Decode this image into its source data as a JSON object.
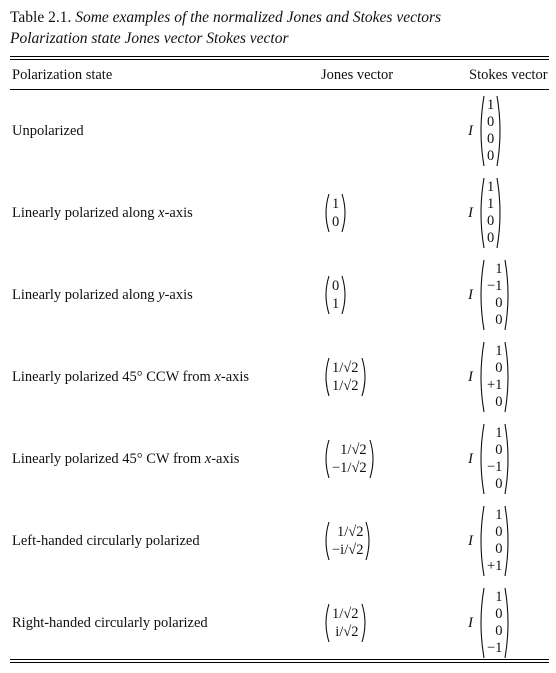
{
  "caption": {
    "table_number": "Table 2.1.",
    "title": "Some examples of the normalized Jones and Stokes vectors",
    "subtitle": "Polarization state Jones vector Stokes vector"
  },
  "headers": {
    "state": "Polarization state",
    "jones": "Jones vector",
    "stokes": "Stokes vector"
  },
  "stokes_prefix": "I",
  "rows": [
    {
      "state_pre": "Unpolarized",
      "state_var": "",
      "state_post": "",
      "jones": [],
      "stokes": [
        "1",
        "0",
        "0",
        "0"
      ]
    },
    {
      "state_pre": "Linearly polarized along ",
      "state_var": "x",
      "state_post": "-axis",
      "jones": [
        "1",
        "0"
      ],
      "stokes": [
        "1",
        "1",
        "0",
        "0"
      ]
    },
    {
      "state_pre": "Linearly polarized along ",
      "state_var": "y",
      "state_post": "-axis",
      "jones": [
        "0",
        "1"
      ],
      "stokes": [
        "1",
        "−1",
        "0",
        "0"
      ]
    },
    {
      "state_pre": "Linearly polarized 45° CCW from ",
      "state_var": "x",
      "state_post": "-axis",
      "jones": [
        "1/√2",
        "1/√2"
      ],
      "stokes": [
        "1",
        "0",
        "+1",
        "0"
      ]
    },
    {
      "state_pre": "Linearly polarized 45° CW from ",
      "state_var": "x",
      "state_post": "-axis",
      "jones": [
        "1/√2",
        "−1/√2"
      ],
      "stokes": [
        "1",
        "0",
        "−1",
        "0"
      ]
    },
    {
      "state_pre": "Left-handed circularly polarized",
      "state_var": "",
      "state_post": "",
      "jones": [
        "1/√2",
        "−i/√2"
      ],
      "stokes": [
        "1",
        "0",
        "0",
        "+1"
      ]
    },
    {
      "state_pre": "Right-handed circularly polarized",
      "state_var": "",
      "state_post": "",
      "jones": [
        "1/√2",
        "i/√2"
      ],
      "stokes": [
        "1",
        "0",
        "0",
        "−1"
      ]
    }
  ]
}
